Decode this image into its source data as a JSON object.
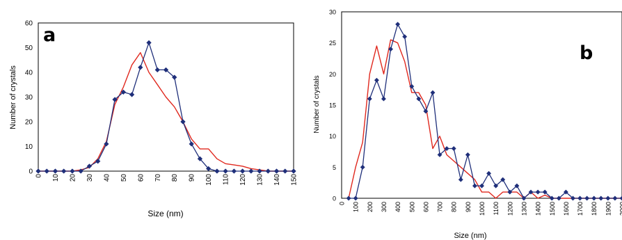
{
  "colors": {
    "observed": "#1f2f7a",
    "fit": "#e0281e",
    "frame": "#000000",
    "background": "#ffffff"
  },
  "chart_data": [
    {
      "type": "line",
      "panel_label": "a",
      "title": "",
      "xlabel": "Size (nm)",
      "ylabel": "Number of crystals",
      "xlim": [
        0,
        150
      ],
      "ylim": [
        0,
        60
      ],
      "x_ticks": [
        "0",
        "10",
        "20",
        "30",
        "40",
        "50",
        "60",
        "70",
        "80",
        "90",
        "100",
        "110",
        "120",
        "130",
        "140",
        "150"
      ],
      "y_ticks": [
        "0",
        "10",
        "20",
        "30",
        "40",
        "50",
        "60"
      ],
      "grid": false,
      "legend": "none",
      "series": [
        {
          "color": "#1f2f7a",
          "marker": "diamond",
          "x": [
            0,
            5,
            10,
            15,
            20,
            25,
            30,
            35,
            40,
            45,
            50,
            55,
            60,
            65,
            70,
            75,
            80,
            85,
            90,
            95,
            100,
            105,
            110,
            115,
            120,
            125,
            130,
            135,
            140,
            145,
            150
          ],
          "y": [
            0,
            0,
            0,
            0,
            0,
            0,
            2,
            4,
            11,
            29,
            32,
            31,
            42,
            52,
            41,
            41,
            38,
            20,
            11,
            5,
            1,
            0,
            0,
            0,
            0,
            0,
            0,
            0,
            0,
            0,
            0
          ]
        },
        {
          "color": "#e0281e",
          "marker": "none",
          "x": [
            0,
            10,
            20,
            25,
            30,
            35,
            40,
            45,
            50,
            55,
            60,
            65,
            70,
            75,
            80,
            85,
            90,
            95,
            100,
            105,
            110,
            115,
            120,
            125,
            130,
            135,
            140,
            150
          ],
          "y": [
            0,
            0,
            0,
            0.5,
            1.5,
            5,
            12,
            27,
            34,
            43,
            48,
            40,
            35,
            30,
            26,
            20,
            13,
            9,
            9,
            5,
            3,
            2.5,
            2,
            1,
            0.5,
            0,
            0,
            0
          ]
        }
      ]
    },
    {
      "type": "line",
      "panel_label": "b",
      "title": "",
      "xlabel": "Size (nm)",
      "ylabel": "Number of crystals",
      "xlim": [
        0,
        2000
      ],
      "ylim": [
        0,
        30
      ],
      "x_ticks": [
        "0",
        "100",
        "200",
        "300",
        "400",
        "500",
        "600",
        "700",
        "800",
        "900",
        "1000",
        "1100",
        "1200",
        "1300",
        "1400",
        "1500",
        "1600",
        "1700",
        "1800",
        "1900",
        "2000"
      ],
      "y_ticks": [
        "0",
        "5",
        "10",
        "15",
        "20",
        "25",
        "30"
      ],
      "grid": false,
      "legend": "none",
      "series": [
        {
          "color": "#1f2f7a",
          "marker": "diamond",
          "x": [
            50,
            100,
            150,
            200,
            250,
            300,
            350,
            400,
            450,
            500,
            550,
            600,
            650,
            700,
            750,
            800,
            850,
            900,
            950,
            1000,
            1050,
            1100,
            1150,
            1200,
            1250,
            1300,
            1350,
            1400,
            1450,
            1500,
            1550,
            1600,
            1650,
            1700,
            1750,
            1800,
            1850,
            1900,
            1950,
            2000
          ],
          "y": [
            0,
            0,
            5,
            16,
            19,
            16,
            24,
            28,
            26,
            18,
            16,
            14,
            17,
            7,
            8,
            8,
            3,
            7,
            2,
            2,
            4,
            2,
            3,
            1,
            2,
            0,
            1,
            1,
            1,
            0,
            0,
            1,
            0,
            0,
            0,
            0,
            0,
            0,
            0,
            0
          ]
        },
        {
          "color": "#e0281e",
          "marker": "none",
          "x": [
            50,
            100,
            150,
            200,
            250,
            300,
            350,
            400,
            450,
            500,
            550,
            600,
            650,
            700,
            750,
            800,
            850,
            900,
            950,
            1000,
            1050,
            1100,
            1150,
            1200,
            1250,
            1300,
            1350,
            1400,
            1450,
            1500,
            1550,
            1600,
            1650,
            1700,
            1750,
            1800,
            1850,
            1900,
            1950,
            2000
          ],
          "y": [
            0,
            5,
            9,
            20,
            24.5,
            20,
            25.5,
            25,
            22,
            17,
            17,
            15,
            8,
            10,
            7,
            6,
            5,
            4,
            3,
            1,
            1,
            0,
            1,
            1,
            1,
            0,
            1,
            0,
            0.5,
            0,
            0,
            0,
            0,
            0,
            0,
            0,
            0,
            0,
            0,
            0
          ]
        }
      ]
    }
  ]
}
